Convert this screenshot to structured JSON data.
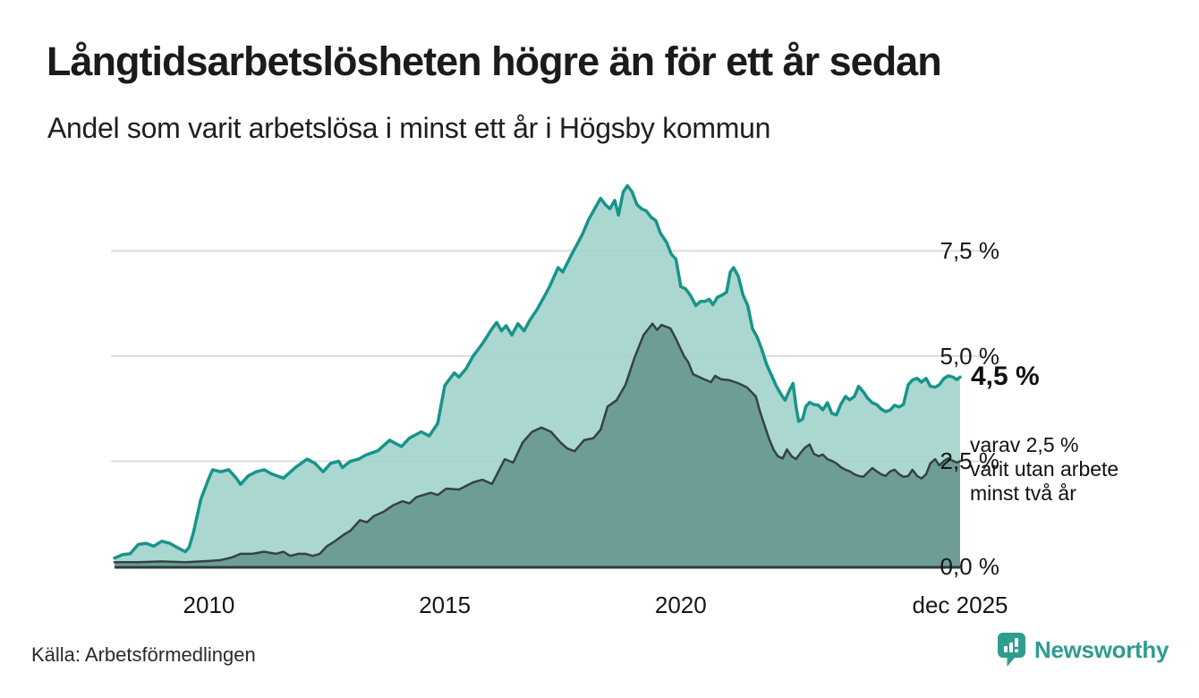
{
  "header": {
    "title": "Långtidsarbetslösheten högre än för ett år sedan",
    "subtitle": "Andel som varit arbetslösa i minst ett år i Högsby kommun"
  },
  "annotations": {
    "primary": "4,5 %",
    "secondary": "varav 2,5 %\nvarit utan arbete\nminst två år"
  },
  "footer": {
    "source": "Källa: Arbetsförmedlingen",
    "brand": "Newsworthy",
    "brand_icon": "speech-bubble-bar-chart-icon"
  },
  "colors": {
    "line_one_year": "#17948a",
    "fill_one_year": "#9fd2cb",
    "line_two_years": "#35433f",
    "fill_two_years": "#6a9a95",
    "gridline": "#dcdcdc",
    "axis": "#2e3c39",
    "brand_teal": "#2f9c90"
  },
  "chart_data": {
    "type": "area",
    "title": "Långtidsarbetslösheten högre än för ett år sedan",
    "subtitle": "Andel som varit arbetslösa i minst ett år i Högsby kommun",
    "xlabel": "",
    "ylabel": "",
    "grid": true,
    "legend_position": "none",
    "x_range": [
      2008.0,
      2025.92
    ],
    "y_range": [
      0,
      9.4
    ],
    "x_ticks": [
      {
        "label": "2010",
        "year": 2010
      },
      {
        "label": "2015",
        "year": 2015
      },
      {
        "label": "2020",
        "year": 2020
      },
      {
        "label": "dec 2025",
        "year": 2025.92
      }
    ],
    "y_ticks": [
      {
        "label": "7,5 %",
        "value": 7.5
      },
      {
        "label": "5,0 %",
        "value": 5.0
      },
      {
        "label": "2,5 %",
        "value": 2.5
      },
      {
        "label": "0,0 %",
        "value": 0.0
      }
    ],
    "end_labels": {
      "one_year": "4,5 %",
      "two_years": "varav 2,5 % varit utan arbete minst två år"
    },
    "series": [
      {
        "name": "minst ett år",
        "line_color": "#17948a",
        "fill_color": "#9fd2cb",
        "fill_opacity": 0.88,
        "line_width": 3.5,
        "points": [
          [
            2008.0,
            0.2
          ],
          [
            2008.17,
            0.28
          ],
          [
            2008.33,
            0.3
          ],
          [
            2008.5,
            0.52
          ],
          [
            2008.67,
            0.55
          ],
          [
            2008.83,
            0.48
          ],
          [
            2009.0,
            0.6
          ],
          [
            2009.17,
            0.55
          ],
          [
            2009.33,
            0.45
          ],
          [
            2009.5,
            0.35
          ],
          [
            2009.58,
            0.45
          ],
          [
            2009.67,
            0.8
          ],
          [
            2009.83,
            1.6
          ],
          [
            2010.0,
            2.1
          ],
          [
            2010.08,
            2.3
          ],
          [
            2010.25,
            2.25
          ],
          [
            2010.42,
            2.3
          ],
          [
            2010.58,
            2.1
          ],
          [
            2010.67,
            1.95
          ],
          [
            2010.83,
            2.15
          ],
          [
            2011.0,
            2.25
          ],
          [
            2011.17,
            2.3
          ],
          [
            2011.33,
            2.2
          ],
          [
            2011.58,
            2.1
          ],
          [
            2011.83,
            2.35
          ],
          [
            2012.08,
            2.55
          ],
          [
            2012.25,
            2.45
          ],
          [
            2012.42,
            2.25
          ],
          [
            2012.58,
            2.45
          ],
          [
            2012.75,
            2.5
          ],
          [
            2012.83,
            2.35
          ],
          [
            2013.0,
            2.5
          ],
          [
            2013.17,
            2.55
          ],
          [
            2013.33,
            2.65
          ],
          [
            2013.58,
            2.75
          ],
          [
            2013.83,
            3.0
          ],
          [
            2014.08,
            2.85
          ],
          [
            2014.25,
            3.05
          ],
          [
            2014.5,
            3.2
          ],
          [
            2014.67,
            3.1
          ],
          [
            2014.85,
            3.4
          ],
          [
            2015.0,
            4.3
          ],
          [
            2015.2,
            4.6
          ],
          [
            2015.3,
            4.5
          ],
          [
            2015.45,
            4.7
          ],
          [
            2015.6,
            5.0
          ],
          [
            2015.8,
            5.3
          ],
          [
            2016.0,
            5.65
          ],
          [
            2016.1,
            5.8
          ],
          [
            2016.2,
            5.6
          ],
          [
            2016.3,
            5.72
          ],
          [
            2016.42,
            5.5
          ],
          [
            2016.55,
            5.77
          ],
          [
            2016.68,
            5.6
          ],
          [
            2016.8,
            5.85
          ],
          [
            2016.95,
            6.1
          ],
          [
            2017.1,
            6.4
          ],
          [
            2017.22,
            6.65
          ],
          [
            2017.4,
            7.1
          ],
          [
            2017.5,
            7.0
          ],
          [
            2017.68,
            7.4
          ],
          [
            2017.8,
            7.65
          ],
          [
            2017.92,
            7.9
          ],
          [
            2018.05,
            8.25
          ],
          [
            2018.2,
            8.55
          ],
          [
            2018.3,
            8.75
          ],
          [
            2018.4,
            8.6
          ],
          [
            2018.5,
            8.5
          ],
          [
            2018.6,
            8.7
          ],
          [
            2018.68,
            8.35
          ],
          [
            2018.78,
            8.9
          ],
          [
            2018.87,
            9.05
          ],
          [
            2018.97,
            8.9
          ],
          [
            2019.07,
            8.6
          ],
          [
            2019.17,
            8.5
          ],
          [
            2019.27,
            8.45
          ],
          [
            2019.37,
            8.3
          ],
          [
            2019.47,
            8.22
          ],
          [
            2019.57,
            7.92
          ],
          [
            2019.7,
            7.7
          ],
          [
            2019.8,
            7.42
          ],
          [
            2019.9,
            7.3
          ],
          [
            2020.0,
            6.65
          ],
          [
            2020.1,
            6.6
          ],
          [
            2020.2,
            6.45
          ],
          [
            2020.32,
            6.2
          ],
          [
            2020.42,
            6.3
          ],
          [
            2020.52,
            6.3
          ],
          [
            2020.6,
            6.35
          ],
          [
            2020.68,
            6.22
          ],
          [
            2020.78,
            6.4
          ],
          [
            2020.88,
            6.45
          ],
          [
            2020.97,
            6.52
          ],
          [
            2021.05,
            7.0
          ],
          [
            2021.12,
            7.1
          ],
          [
            2021.22,
            6.9
          ],
          [
            2021.32,
            6.45
          ],
          [
            2021.42,
            6.2
          ],
          [
            2021.52,
            5.65
          ],
          [
            2021.62,
            5.45
          ],
          [
            2021.72,
            5.15
          ],
          [
            2021.82,
            4.8
          ],
          [
            2021.92,
            4.55
          ],
          [
            2022.02,
            4.3
          ],
          [
            2022.12,
            4.1
          ],
          [
            2022.21,
            3.95
          ],
          [
            2022.31,
            4.2
          ],
          [
            2022.38,
            4.35
          ],
          [
            2022.45,
            3.75
          ],
          [
            2022.5,
            3.45
          ],
          [
            2022.58,
            3.5
          ],
          [
            2022.65,
            3.8
          ],
          [
            2022.73,
            3.9
          ],
          [
            2022.82,
            3.85
          ],
          [
            2022.92,
            3.83
          ],
          [
            2023.01,
            3.72
          ],
          [
            2023.11,
            3.89
          ],
          [
            2023.2,
            3.64
          ],
          [
            2023.3,
            3.6
          ],
          [
            2023.39,
            3.85
          ],
          [
            2023.49,
            4.04
          ],
          [
            2023.58,
            3.96
          ],
          [
            2023.68,
            4.04
          ],
          [
            2023.77,
            4.28
          ],
          [
            2023.87,
            4.15
          ],
          [
            2023.96,
            4.0
          ],
          [
            2024.06,
            3.89
          ],
          [
            2024.15,
            3.85
          ],
          [
            2024.25,
            3.74
          ],
          [
            2024.34,
            3.68
          ],
          [
            2024.44,
            3.72
          ],
          [
            2024.53,
            3.83
          ],
          [
            2024.63,
            3.79
          ],
          [
            2024.72,
            3.85
          ],
          [
            2024.82,
            4.32
          ],
          [
            2024.91,
            4.43
          ],
          [
            2025.01,
            4.47
          ],
          [
            2025.1,
            4.38
          ],
          [
            2025.2,
            4.47
          ],
          [
            2025.29,
            4.28
          ],
          [
            2025.39,
            4.26
          ],
          [
            2025.48,
            4.32
          ],
          [
            2025.58,
            4.47
          ],
          [
            2025.67,
            4.53
          ],
          [
            2025.77,
            4.5
          ],
          [
            2025.85,
            4.44
          ],
          [
            2025.92,
            4.5
          ]
        ]
      },
      {
        "name": "minst två år",
        "line_color": "#35433f",
        "fill_color": "#6a9a95",
        "fill_opacity": 0.95,
        "line_width": 2.5,
        "points": [
          [
            2008.0,
            0.1
          ],
          [
            2008.5,
            0.1
          ],
          [
            2009.0,
            0.12
          ],
          [
            2009.5,
            0.1
          ],
          [
            2010.0,
            0.13
          ],
          [
            2010.25,
            0.15
          ],
          [
            2010.5,
            0.22
          ],
          [
            2010.67,
            0.3
          ],
          [
            2010.92,
            0.3
          ],
          [
            2011.17,
            0.35
          ],
          [
            2011.42,
            0.3
          ],
          [
            2011.58,
            0.35
          ],
          [
            2011.72,
            0.25
          ],
          [
            2011.9,
            0.3
          ],
          [
            2012.05,
            0.3
          ],
          [
            2012.2,
            0.25
          ],
          [
            2012.35,
            0.3
          ],
          [
            2012.5,
            0.48
          ],
          [
            2012.67,
            0.6
          ],
          [
            2012.85,
            0.75
          ],
          [
            2013.0,
            0.85
          ],
          [
            2013.2,
            1.1
          ],
          [
            2013.35,
            1.05
          ],
          [
            2013.5,
            1.2
          ],
          [
            2013.7,
            1.3
          ],
          [
            2013.9,
            1.45
          ],
          [
            2014.1,
            1.55
          ],
          [
            2014.25,
            1.5
          ],
          [
            2014.4,
            1.65
          ],
          [
            2014.55,
            1.7
          ],
          [
            2014.7,
            1.75
          ],
          [
            2014.85,
            1.7
          ],
          [
            2015.03,
            1.85
          ],
          [
            2015.3,
            1.83
          ],
          [
            2015.6,
            2.0
          ],
          [
            2015.8,
            2.06
          ],
          [
            2016.0,
            1.96
          ],
          [
            2016.27,
            2.55
          ],
          [
            2016.45,
            2.47
          ],
          [
            2016.65,
            2.95
          ],
          [
            2016.85,
            3.2
          ],
          [
            2017.05,
            3.3
          ],
          [
            2017.25,
            3.2
          ],
          [
            2017.45,
            2.95
          ],
          [
            2017.6,
            2.8
          ],
          [
            2017.75,
            2.74
          ],
          [
            2017.95,
            3.0
          ],
          [
            2018.15,
            3.05
          ],
          [
            2018.3,
            3.25
          ],
          [
            2018.45,
            3.8
          ],
          [
            2018.64,
            3.95
          ],
          [
            2018.83,
            4.32
          ],
          [
            2019.02,
            4.96
          ],
          [
            2019.21,
            5.5
          ],
          [
            2019.4,
            5.77
          ],
          [
            2019.5,
            5.62
          ],
          [
            2019.59,
            5.74
          ],
          [
            2019.78,
            5.66
          ],
          [
            2019.88,
            5.45
          ],
          [
            2020.07,
            5.0
          ],
          [
            2020.16,
            4.85
          ],
          [
            2020.26,
            4.57
          ],
          [
            2020.45,
            4.47
          ],
          [
            2020.64,
            4.38
          ],
          [
            2020.73,
            4.53
          ],
          [
            2020.85,
            4.45
          ],
          [
            2021.02,
            4.43
          ],
          [
            2021.21,
            4.36
          ],
          [
            2021.4,
            4.26
          ],
          [
            2021.59,
            4.04
          ],
          [
            2021.68,
            3.68
          ],
          [
            2021.87,
            3.04
          ],
          [
            2021.97,
            2.77
          ],
          [
            2022.06,
            2.62
          ],
          [
            2022.16,
            2.57
          ],
          [
            2022.25,
            2.78
          ],
          [
            2022.35,
            2.62
          ],
          [
            2022.44,
            2.55
          ],
          [
            2022.54,
            2.7
          ],
          [
            2022.63,
            2.82
          ],
          [
            2022.73,
            2.9
          ],
          [
            2022.82,
            2.68
          ],
          [
            2022.92,
            2.62
          ],
          [
            2023.01,
            2.66
          ],
          [
            2023.11,
            2.55
          ],
          [
            2023.2,
            2.51
          ],
          [
            2023.3,
            2.45
          ],
          [
            2023.39,
            2.36
          ],
          [
            2023.49,
            2.3
          ],
          [
            2023.58,
            2.26
          ],
          [
            2023.68,
            2.19
          ],
          [
            2023.77,
            2.15
          ],
          [
            2023.87,
            2.13
          ],
          [
            2023.96,
            2.23
          ],
          [
            2024.06,
            2.34
          ],
          [
            2024.15,
            2.26
          ],
          [
            2024.25,
            2.19
          ],
          [
            2024.34,
            2.15
          ],
          [
            2024.44,
            2.26
          ],
          [
            2024.53,
            2.3
          ],
          [
            2024.63,
            2.19
          ],
          [
            2024.72,
            2.13
          ],
          [
            2024.82,
            2.15
          ],
          [
            2024.91,
            2.3
          ],
          [
            2025.01,
            2.15
          ],
          [
            2025.1,
            2.09
          ],
          [
            2025.2,
            2.19
          ],
          [
            2025.29,
            2.45
          ],
          [
            2025.39,
            2.55
          ],
          [
            2025.48,
            2.4
          ],
          [
            2025.58,
            2.51
          ],
          [
            2025.67,
            2.57
          ],
          [
            2025.77,
            2.51
          ],
          [
            2025.85,
            2.47
          ],
          [
            2025.92,
            2.5
          ]
        ]
      }
    ]
  }
}
